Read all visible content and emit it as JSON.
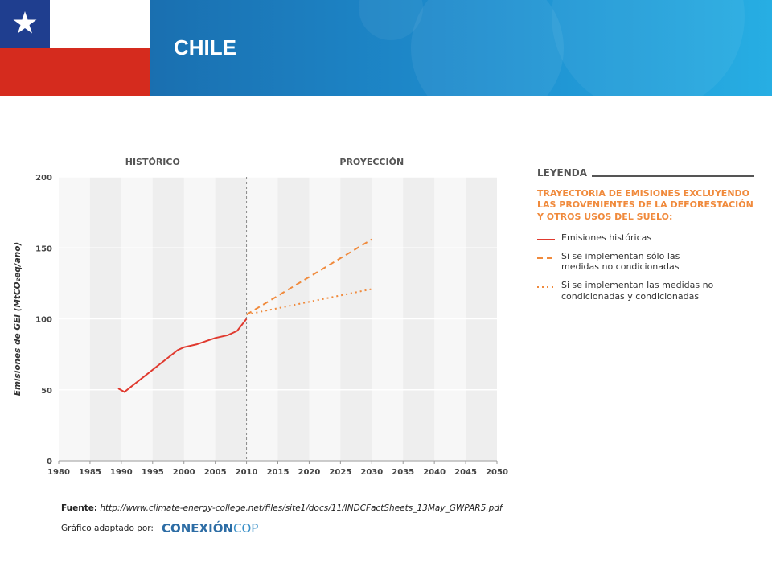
{
  "header": {
    "country": "CHILE"
  },
  "chart_data": {
    "type": "line",
    "section_labels": [
      "HISTÓRICO",
      "PROYECCIÓN"
    ],
    "y_label": "Emisiones de GEI (MtCO₂eq/año)",
    "xlim": [
      1980,
      2050
    ],
    "xticks": [
      1980,
      1985,
      1990,
      1995,
      2000,
      2005,
      2010,
      2015,
      2020,
      2025,
      2030,
      2035,
      2040,
      2045,
      2050
    ],
    "ylim": [
      0,
      200
    ],
    "yticks": [
      0,
      50,
      100,
      150,
      200
    ],
    "grid": true,
    "legend_title": "LEYENDA",
    "legend_subtitle": "TRAYECTORIA DE EMISIONES EXCLUYENDO LAS PROVENIENTES DE LA DEFORESTACIÓN Y OTROS USOS DEL SUELO:",
    "series": [
      {
        "name": "Emisiones históricas",
        "color": "#e03a2f",
        "dash": "solid",
        "x": [
          1989.5,
          1990.5,
          1999,
          2000,
          2002,
          2004,
          2005,
          2007,
          2008.5,
          2010
        ],
        "values": [
          51,
          48.5,
          78,
          80,
          82,
          85,
          86.5,
          88.5,
          91.5,
          100
        ]
      },
      {
        "name": "Si se implementan sólo las medidas no condicionadas",
        "color": "#f08a3c",
        "dash": "dashed",
        "x": [
          2010,
          2030
        ],
        "values": [
          103,
          156
        ]
      },
      {
        "name": "Si se implementan las medidas no condicionadas y condicionadas",
        "color": "#f08a3c",
        "dash": "dotted",
        "x": [
          2010,
          2030
        ],
        "values": [
          103,
          121
        ]
      }
    ]
  },
  "source": {
    "label": "Fuente:",
    "url": "http://www.climate-energy-college.net/files/site1/docs/11/INDCFactSheets_13May_GWPAR5.pdf"
  },
  "credit": {
    "label": "Gráfico adaptado por:",
    "brand_bold": "CONEXIÓN",
    "brand_light": "COP"
  }
}
